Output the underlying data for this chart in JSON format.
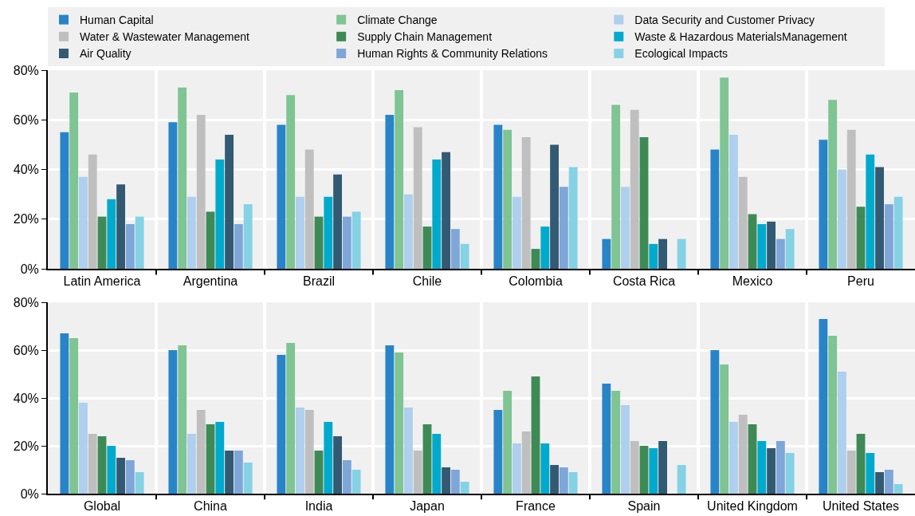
{
  "chart_data": [
    {
      "type": "bar",
      "categories": [
        "Latin America",
        "Argentina",
        "Brazil",
        "Chile",
        "Colombia",
        "Costa Rica",
        "Mexico",
        "Peru"
      ],
      "ylim": [
        0,
        80
      ],
      "yticks": [
        {
          "value": 0,
          "label": "0%"
        },
        {
          "value": 20,
          "label": "20%"
        },
        {
          "value": 40,
          "label": "40%"
        },
        {
          "value": 60,
          "label": "60%"
        },
        {
          "value": 80,
          "label": "80%"
        }
      ],
      "grid": true,
      "legend": "top",
      "series": [
        {
          "name": "Human Capital",
          "color": "#2884c8",
          "values": [
            55,
            59,
            58,
            62,
            58,
            12,
            48,
            52
          ]
        },
        {
          "name": "Climate Change",
          "color": "#7fc493",
          "values": [
            71,
            73,
            70,
            72,
            56,
            66,
            77,
            68
          ]
        },
        {
          "name": "Data Security and Customer Privacy",
          "color": "#aecfee",
          "values": [
            37,
            29,
            29,
            30,
            29,
            33,
            54,
            40
          ]
        },
        {
          "name": "Water & Wastewater Management",
          "color": "#bfbfbf",
          "values": [
            46,
            62,
            48,
            57,
            53,
            64,
            37,
            56
          ]
        },
        {
          "name": "Supply Chain Management",
          "color": "#3e8a55",
          "values": [
            21,
            23,
            21,
            17,
            8,
            53,
            22,
            25
          ]
        },
        {
          "name": "Waste & Hazardous MaterialsManagement",
          "color": "#00aacd",
          "values": [
            28,
            44,
            29,
            44,
            17,
            10,
            18,
            46
          ]
        },
        {
          "name": "Air Quality",
          "color": "#335a73",
          "values": [
            34,
            54,
            38,
            47,
            50,
            12,
            19,
            41
          ]
        },
        {
          "name": "Human Rights & Community Relations",
          "color": "#7fa6d8",
          "values": [
            18,
            18,
            21,
            16,
            33,
            null,
            12,
            26
          ]
        },
        {
          "name": "Ecological Impacts",
          "color": "#84d2e4",
          "values": [
            21,
            26,
            23,
            10,
            41,
            12,
            16,
            29
          ]
        }
      ]
    },
    {
      "type": "bar",
      "categories": [
        "Global",
        "China",
        "India",
        "Japan",
        "France",
        "Spain",
        "United Kingdom",
        "United States"
      ],
      "ylim": [
        0,
        80
      ],
      "yticks": [
        {
          "value": 0,
          "label": "0%"
        },
        {
          "value": 20,
          "label": "20%"
        },
        {
          "value": 40,
          "label": "40%"
        },
        {
          "value": 60,
          "label": "60%"
        },
        {
          "value": 80,
          "label": "80%"
        }
      ],
      "grid": true,
      "series": [
        {
          "color": "#2884c8",
          "values": [
            67,
            60,
            58,
            62,
            35,
            46,
            60,
            73
          ]
        },
        {
          "color": "#7fc493",
          "values": [
            65,
            62,
            63,
            59,
            43,
            43,
            54,
            66
          ]
        },
        {
          "color": "#aecfee",
          "values": [
            38,
            25,
            36,
            36,
            21,
            37,
            30,
            51
          ]
        },
        {
          "color": "#bfbfbf",
          "values": [
            25,
            35,
            35,
            18,
            26,
            22,
            33,
            18
          ]
        },
        {
          "color": "#3e8a55",
          "values": [
            24,
            29,
            18,
            29,
            49,
            20,
            29,
            25
          ]
        },
        {
          "color": "#00aacd",
          "values": [
            20,
            30,
            30,
            25,
            21,
            19,
            22,
            17
          ]
        },
        {
          "color": "#335a73",
          "values": [
            15,
            18,
            24,
            11,
            12,
            22,
            19,
            9
          ]
        },
        {
          "color": "#7fa6d8",
          "values": [
            14,
            18,
            14,
            10,
            11,
            null,
            22,
            10
          ]
        },
        {
          "color": "#84d2e4",
          "values": [
            9,
            13,
            10,
            5,
            9,
            12,
            17,
            4
          ]
        }
      ]
    }
  ]
}
